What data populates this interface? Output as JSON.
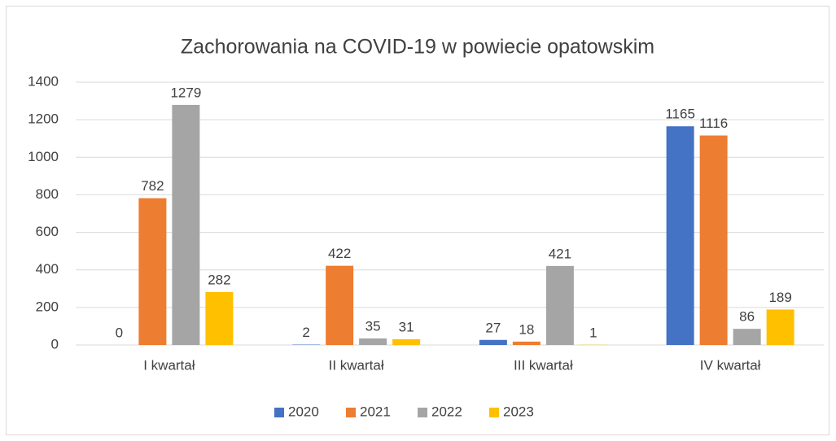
{
  "chart_data": {
    "type": "bar",
    "title": "Zachorowania na COVID-19 w powiecie opatowskim",
    "categories": [
      "I kwartał",
      "II kwartał",
      "III kwartał",
      "IV kwartał"
    ],
    "series": [
      {
        "name": "2020",
        "color": "#4472c4",
        "values": [
          0,
          2,
          27,
          1165
        ]
      },
      {
        "name": "2021",
        "color": "#ed7d31",
        "values": [
          782,
          422,
          18,
          1116
        ]
      },
      {
        "name": "2022",
        "color": "#a5a5a5",
        "values": [
          1279,
          35,
          421,
          86
        ]
      },
      {
        "name": "2023",
        "color": "#ffc000",
        "values": [
          282,
          31,
          1,
          189
        ]
      }
    ],
    "ylim": [
      0,
      1400
    ],
    "yticks": [
      0,
      200,
      400,
      600,
      800,
      1000,
      1200,
      1400
    ],
    "grid": true,
    "legend": "bottom"
  }
}
